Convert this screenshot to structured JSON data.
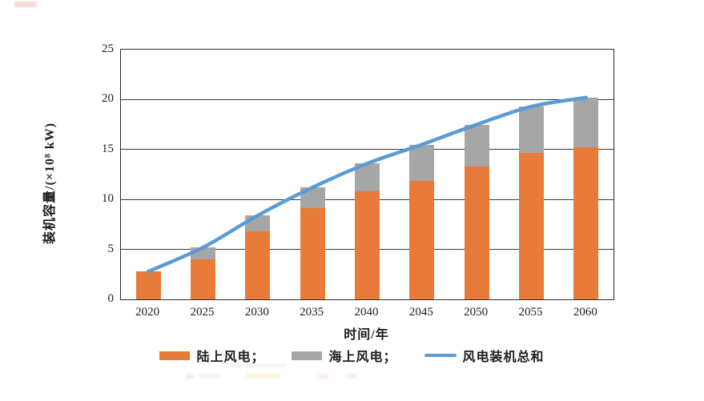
{
  "figure_title": "",
  "colors": {
    "onshore_bar": "#E87B3A",
    "offshore_bar": "#A7A6A6",
    "total_line": "#5B9BD5",
    "axis": "#2B2B2B",
    "stray_red_mark": "#E05A4E"
  },
  "legend": {
    "items": [
      {
        "label": "陆上风电；",
        "swatch": "orange-bar"
      },
      {
        "label": "海上风电；",
        "swatch": "gray-bar"
      },
      {
        "label": "风电装机总和",
        "swatch": "blue-line"
      }
    ]
  },
  "chart_data": {
    "type": "bar",
    "subtype": "stacked-bars-with-total-line",
    "title": "",
    "xlabel": "时间/年",
    "ylabel": "装机容量/(×10⁸ kW)",
    "categories": [
      "2020",
      "2025",
      "2030",
      "2035",
      "2040",
      "2045",
      "2050",
      "2055",
      "2060"
    ],
    "series": [
      {
        "name": "陆上风电",
        "type": "bar",
        "stacked": true,
        "color": "#E87B3A",
        "values": [
          2.8,
          4.0,
          6.8,
          9.1,
          10.8,
          11.9,
          13.3,
          14.7,
          15.2
        ]
      },
      {
        "name": "海上风电",
        "type": "bar",
        "stacked": true,
        "color": "#A7A6A6",
        "values": [
          0,
          1.2,
          1.6,
          2.1,
          2.8,
          3.6,
          4.2,
          4.6,
          5.0
        ]
      },
      {
        "name": "风电装机总和",
        "type": "line",
        "color": "#5B9BD5",
        "values": [
          2.8,
          5.2,
          8.4,
          11.2,
          13.6,
          15.5,
          17.5,
          19.3,
          20.2
        ]
      }
    ],
    "ylim": [
      0,
      25
    ],
    "y_ticks": [
      0,
      5,
      10,
      15,
      20,
      25
    ],
    "grid": "horizontal",
    "legend_position": "bottom"
  }
}
